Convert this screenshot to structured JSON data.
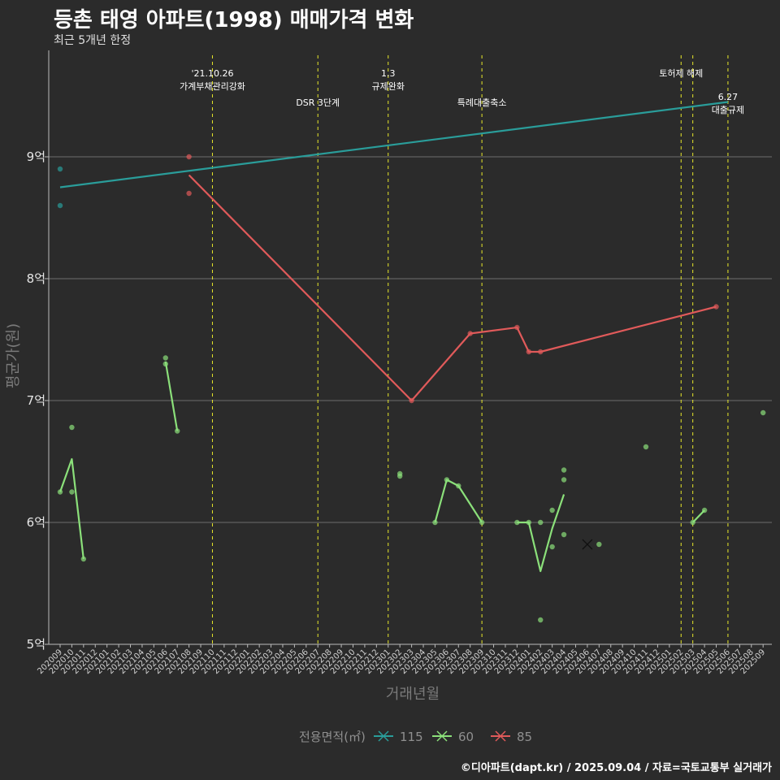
{
  "header": {
    "title": "등촌 태영 아파트(1998) 매매가격 변화",
    "subtitle": "최근 5개년 한정"
  },
  "caption": "©디아파트(dapt.kr) / 2025.09.04 / 자료=국토교통부 실거래가",
  "chart_data": {
    "type": "line",
    "title": "등촌 태영 아파트(1998) 매매가격 변화",
    "subtitle": "최근 5개년 한정",
    "xlabel": "거래년월",
    "ylabel": "평균가(원)",
    "ylim": [
      5,
      9.8
    ],
    "y_ticks": [
      5,
      6,
      7,
      8,
      9
    ],
    "y_tick_labels": [
      "5억",
      "6억",
      "7억",
      "8억",
      "9억"
    ],
    "categories": [
      "202009",
      "202010",
      "202011",
      "202012",
      "202101",
      "202102",
      "202103",
      "202104",
      "202105",
      "202106",
      "202107",
      "202108",
      "202109",
      "202110",
      "202111",
      "202112",
      "202201",
      "202202",
      "202203",
      "202204",
      "202205",
      "202206",
      "202207",
      "202208",
      "202209",
      "202210",
      "202211",
      "202212",
      "202301",
      "202302",
      "202303",
      "202304",
      "202305",
      "202306",
      "202307",
      "202308",
      "202309",
      "202310",
      "202311",
      "202312",
      "202401",
      "202402",
      "202403",
      "202404",
      "202405",
      "202406",
      "202407",
      "202408",
      "202409",
      "202410",
      "202411",
      "202412",
      "202501",
      "202502",
      "202503",
      "202504",
      "202505",
      "202506",
      "202507",
      "202508",
      "202509"
    ],
    "legend_title": "전용면적(㎡)",
    "series": [
      {
        "name": "115",
        "color": "#2a9d9a",
        "points": [
          [
            "202009",
            8.9
          ],
          [
            "202009",
            8.6
          ]
        ],
        "line": [
          [
            "202009",
            8.75
          ],
          [
            "202506",
            9.45
          ]
        ]
      },
      {
        "name": "60",
        "color": "#8be07a",
        "points": [
          [
            "202009",
            6.25
          ],
          [
            "202010",
            6.78
          ],
          [
            "202010",
            6.25
          ],
          [
            "202011",
            5.7
          ],
          [
            "202106",
            7.35
          ],
          [
            "202106",
            7.3
          ],
          [
            "202107",
            6.75
          ],
          [
            "202302",
            6.4
          ],
          [
            "202302",
            6.38
          ],
          [
            "202305",
            6.0
          ],
          [
            "202306",
            6.35
          ],
          [
            "202307",
            6.3
          ],
          [
            "202309",
            6.0
          ],
          [
            "202312",
            6.0
          ],
          [
            "202401",
            6.0
          ],
          [
            "202402",
            6.0
          ],
          [
            "202402",
            5.2
          ],
          [
            "202403",
            6.1
          ],
          [
            "202403",
            5.8
          ],
          [
            "202404",
            6.43
          ],
          [
            "202404",
            6.35
          ],
          [
            "202404",
            5.9
          ],
          [
            "202407",
            5.82
          ],
          [
            "202411",
            6.62
          ],
          [
            "202503",
            6.0
          ],
          [
            "202504",
            6.1
          ],
          [
            "202509",
            6.9
          ]
        ],
        "segments": [
          [
            [
              "202009",
              6.25
            ],
            [
              "202010",
              6.52
            ],
            [
              "202011",
              5.7
            ]
          ],
          [
            [
              "202106",
              7.32
            ],
            [
              "202107",
              6.75
            ]
          ],
          [
            [
              "202305",
              6.0
            ],
            [
              "202306",
              6.35
            ],
            [
              "202307",
              6.3
            ],
            [
              "202309",
              6.0
            ]
          ],
          [
            [
              "202312",
              6.0
            ],
            [
              "202401",
              6.0
            ],
            [
              "202402",
              5.6
            ],
            [
              "202403",
              5.95
            ],
            [
              "202404",
              6.23
            ]
          ],
          [
            [
              "202503",
              6.0
            ],
            [
              "202504",
              6.1
            ]
          ]
        ]
      },
      {
        "name": "85",
        "color": "#e05a5a",
        "points": [
          [
            "202108",
            9.0
          ],
          [
            "202108",
            8.7
          ],
          [
            "202303",
            7.0
          ],
          [
            "202308",
            7.55
          ],
          [
            "202312",
            7.6
          ],
          [
            "202401",
            7.4
          ],
          [
            "202402",
            7.4
          ],
          [
            "202505",
            7.77
          ]
        ],
        "segments": [
          [
            [
              "202108",
              8.85
            ],
            [
              "202303",
              7.0
            ],
            [
              "202308",
              7.55
            ],
            [
              "202312",
              7.6
            ],
            [
              "202401",
              7.4
            ],
            [
              "202402",
              7.4
            ],
            [
              "202505",
              7.77
            ]
          ]
        ]
      }
    ],
    "crossed_marker": [
      "202406",
      5.82
    ],
    "events": [
      {
        "month": "202110",
        "text": [
          "'21.10.26",
          "가계부채관리강화"
        ],
        "level": 0
      },
      {
        "month": "202207",
        "text": [
          "DSR 3단계"
        ],
        "level": 1
      },
      {
        "month": "202301",
        "text": [
          "1.3",
          "규제완화"
        ],
        "level": 0
      },
      {
        "month": "202309",
        "text": [
          "특례대출축소"
        ],
        "level": 1
      },
      {
        "month": "202502",
        "text": [
          "토허제 해제"
        ],
        "level": 0
      },
      {
        "month": "202503",
        "text": [],
        "level": 0
      },
      {
        "month": "202506",
        "text": [
          "6.27",
          "대출규제"
        ],
        "level": 2
      }
    ]
  }
}
